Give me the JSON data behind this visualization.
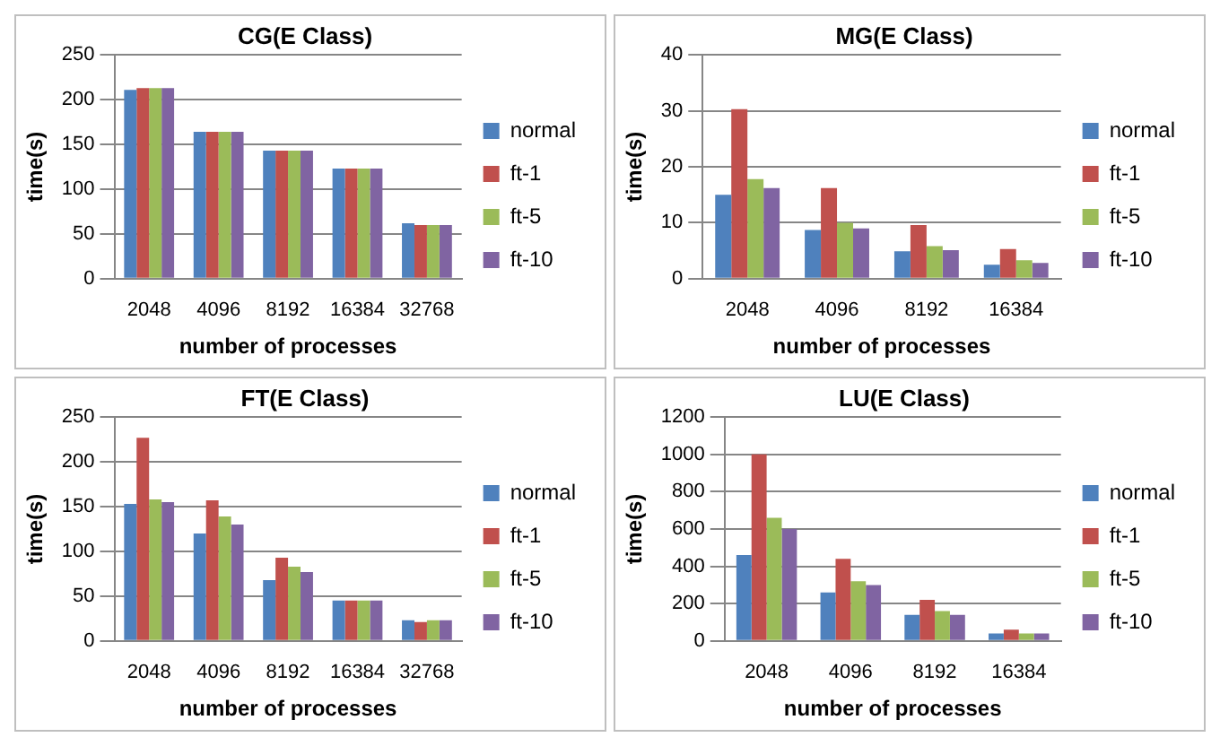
{
  "chart_data": [
    {
      "type": "bar",
      "title": "CG(E Class)",
      "xlabel": "number of processes",
      "ylabel": "time(s)",
      "categories": [
        "2048",
        "4096",
        "8192",
        "16384",
        "32768"
      ],
      "ylim": [
        0,
        250
      ],
      "yticks": [
        0,
        50,
        100,
        150,
        200,
        250
      ],
      "grid": "y",
      "legend": "right",
      "series": [
        {
          "name": "normal",
          "color": "#4f81bd",
          "values": [
            211,
            164,
            143,
            123,
            62
          ]
        },
        {
          "name": "ft-1",
          "color": "#c0504d",
          "values": [
            213,
            164,
            143,
            123,
            60
          ]
        },
        {
          "name": "ft-5",
          "color": "#9bbb59",
          "values": [
            213,
            164,
            143,
            123,
            60
          ]
        },
        {
          "name": "ft-10",
          "color": "#8064a2",
          "values": [
            213,
            164,
            143,
            123,
            60
          ]
        }
      ]
    },
    {
      "type": "bar",
      "title": "MG(E Class)",
      "xlabel": "number of processes",
      "ylabel": "time(s)",
      "categories": [
        "2048",
        "4096",
        "8192",
        "16384"
      ],
      "ylim": [
        0,
        40
      ],
      "yticks": [
        0,
        10,
        20,
        30,
        40
      ],
      "grid": "y",
      "legend": "right",
      "series": [
        {
          "name": "normal",
          "color": "#4f81bd",
          "values": [
            15,
            8.7,
            4.9,
            2.5
          ]
        },
        {
          "name": "ft-1",
          "color": "#c0504d",
          "values": [
            30.3,
            16.2,
            9.6,
            5.3
          ]
        },
        {
          "name": "ft-5",
          "color": "#9bbb59",
          "values": [
            17.8,
            10,
            5.8,
            3.3
          ]
        },
        {
          "name": "ft-10",
          "color": "#8064a2",
          "values": [
            16.2,
            9,
            5.1,
            2.8
          ]
        }
      ]
    },
    {
      "type": "bar",
      "title": "FT(E Class)",
      "xlabel": "number of processes",
      "ylabel": "time(s)",
      "categories": [
        "2048",
        "4096",
        "8192",
        "16384",
        "32768"
      ],
      "ylim": [
        0,
        250
      ],
      "yticks": [
        0,
        50,
        100,
        150,
        200,
        250
      ],
      "grid": "y",
      "legend": "right",
      "series": [
        {
          "name": "normal",
          "color": "#4f81bd",
          "values": [
            153,
            120,
            68,
            45,
            23
          ]
        },
        {
          "name": "ft-1",
          "color": "#c0504d",
          "values": [
            227,
            157,
            93,
            45,
            21
          ]
        },
        {
          "name": "ft-5",
          "color": "#9bbb59",
          "values": [
            158,
            139,
            83,
            45,
            23
          ]
        },
        {
          "name": "ft-10",
          "color": "#8064a2",
          "values": [
            155,
            130,
            77,
            45,
            23
          ]
        }
      ]
    },
    {
      "type": "bar",
      "title": "LU(E Class)",
      "xlabel": "number of processes",
      "ylabel": "time(s)",
      "categories": [
        "2048",
        "4096",
        "8192",
        "16384"
      ],
      "ylim": [
        0,
        1200
      ],
      "yticks": [
        0,
        200,
        400,
        600,
        800,
        1000,
        1200
      ],
      "grid": "y",
      "legend": "right",
      "series": [
        {
          "name": "normal",
          "color": "#4f81bd",
          "values": [
            460,
            260,
            140,
            40
          ]
        },
        {
          "name": "ft-1",
          "color": "#c0504d",
          "values": [
            1000,
            440,
            220,
            60
          ]
        },
        {
          "name": "ft-5",
          "color": "#9bbb59",
          "values": [
            660,
            320,
            160,
            40
          ]
        },
        {
          "name": "ft-10",
          "color": "#8064a2",
          "values": [
            600,
            300,
            140,
            40
          ]
        }
      ]
    }
  ]
}
